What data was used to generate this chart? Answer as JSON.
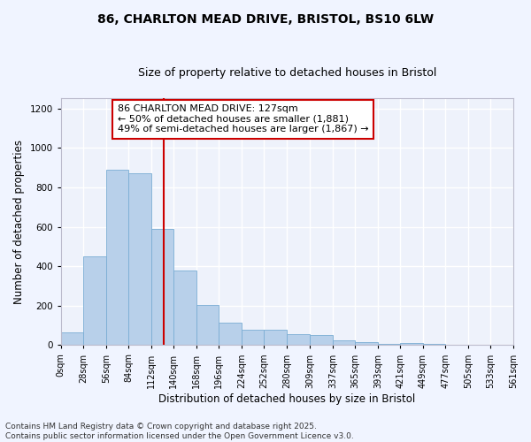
{
  "title_line1": "86, CHARLTON MEAD DRIVE, BRISTOL, BS10 6LW",
  "title_line2": "Size of property relative to detached houses in Bristol",
  "xlabel": "Distribution of detached houses by size in Bristol",
  "ylabel": "Number of detached properties",
  "bar_color": "#b8d0ea",
  "bar_edge_color": "#7aadd4",
  "background_color": "#eef2fb",
  "grid_color": "#ffffff",
  "vline_x": 127,
  "vline_color": "#cc0000",
  "annotation_text": "86 CHARLTON MEAD DRIVE: 127sqm\n← 50% of detached houses are smaller (1,881)\n49% of semi-detached houses are larger (1,867) →",
  "annotation_box_facecolor": "#ffffff",
  "annotation_box_edge": "#cc0000",
  "bins": [
    0,
    28,
    56,
    84,
    112,
    140,
    168,
    196,
    224,
    252,
    280,
    309,
    337,
    365,
    393,
    421,
    449,
    477,
    505,
    533,
    561
  ],
  "bar_heights": [
    65,
    450,
    890,
    870,
    590,
    380,
    205,
    115,
    80,
    80,
    55,
    50,
    25,
    15,
    5,
    12,
    5,
    3,
    1,
    1
  ],
  "tick_labels": [
    "0sqm",
    "28sqm",
    "56sqm",
    "84sqm",
    "112sqm",
    "140sqm",
    "168sqm",
    "196sqm",
    "224sqm",
    "252sqm",
    "280sqm",
    "309sqm",
    "337sqm",
    "365sqm",
    "393sqm",
    "421sqm",
    "449sqm",
    "477sqm",
    "505sqm",
    "533sqm",
    "561sqm"
  ],
  "ylim": [
    0,
    1250
  ],
  "yticks": [
    0,
    200,
    400,
    600,
    800,
    1000,
    1200
  ],
  "footnote": "Contains HM Land Registry data © Crown copyright and database right 2025.\nContains public sector information licensed under the Open Government Licence v3.0.",
  "title_fontsize": 10,
  "subtitle_fontsize": 9,
  "axis_label_fontsize": 8.5,
  "tick_fontsize": 7,
  "annotation_fontsize": 8,
  "footnote_fontsize": 6.5
}
